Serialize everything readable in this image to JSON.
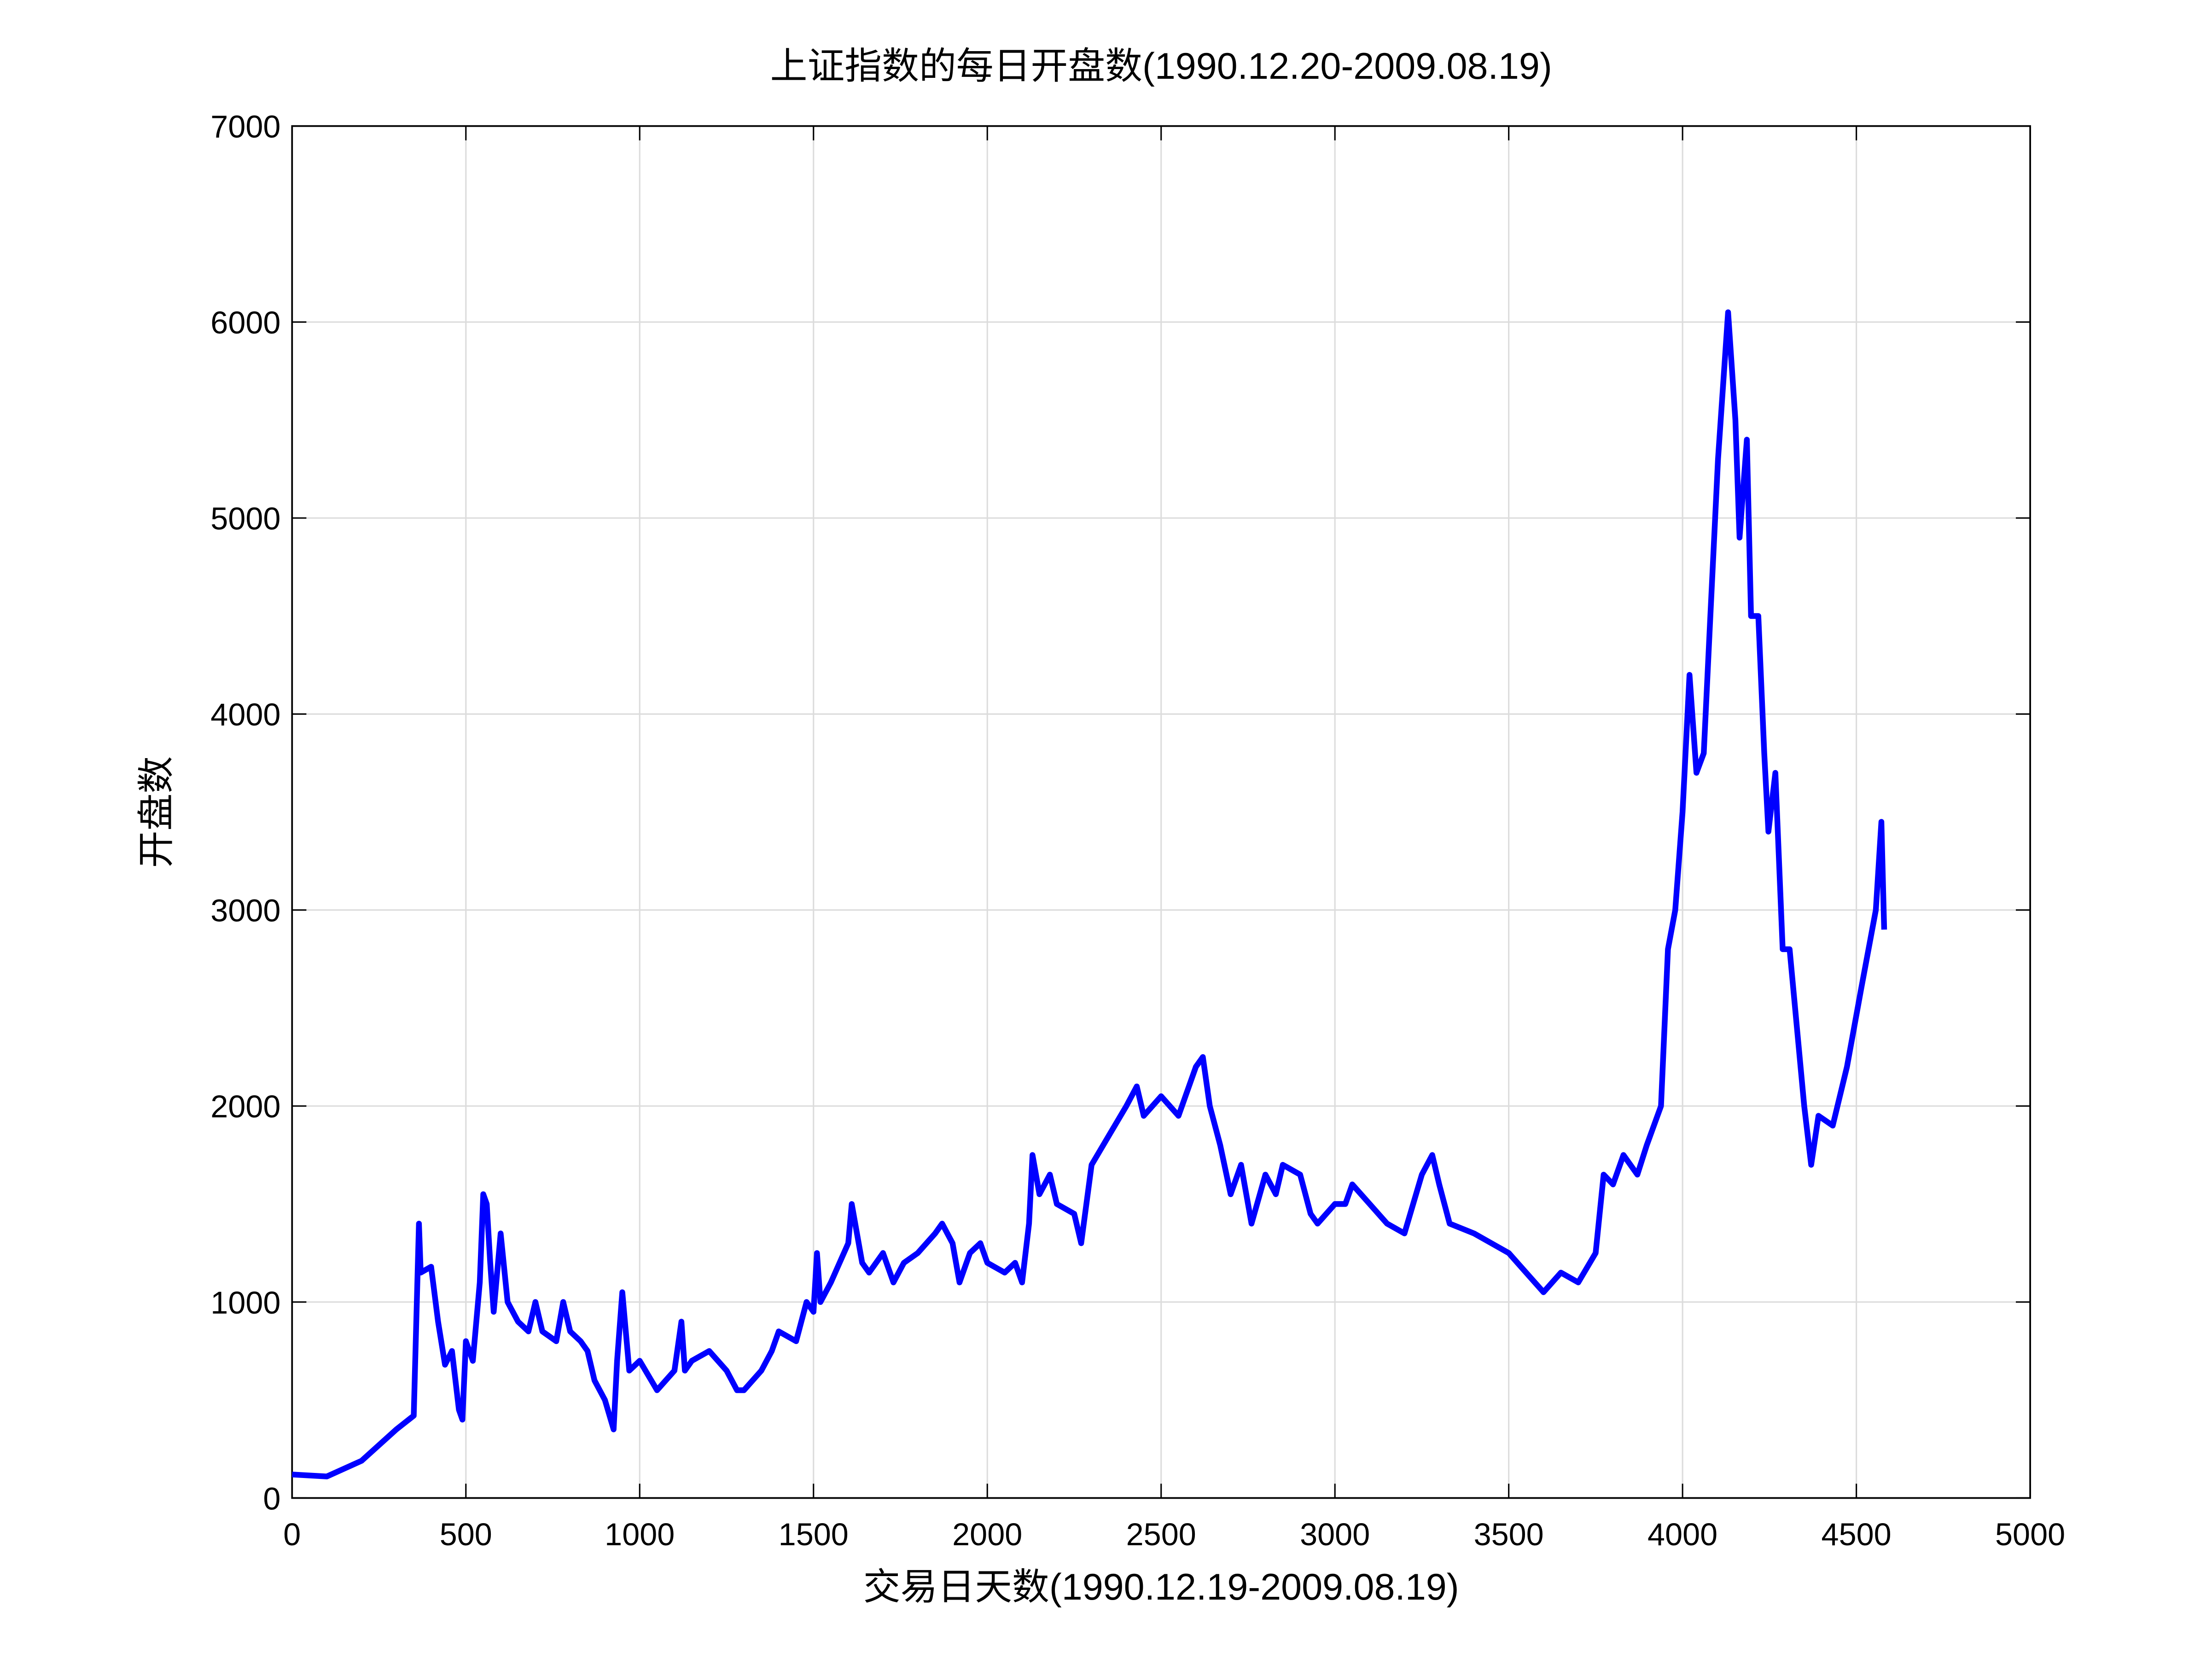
{
  "chart_data": {
    "type": "line",
    "title": "上证指数的每日开盘数(1990.12.20-2009.08.19)",
    "xlabel": "交易日天数(1990.12.19-2009.08.19)",
    "ylabel": "开盘数",
    "x": [
      0,
      100,
      200,
      300,
      350,
      365,
      370,
      400,
      420,
      440,
      460,
      480,
      490,
      500,
      520,
      540,
      550,
      560,
      570,
      580,
      600,
      620,
      650,
      680,
      700,
      720,
      760,
      780,
      800,
      830,
      850,
      870,
      900,
      925,
      935,
      950,
      960,
      970,
      1000,
      1050,
      1100,
      1120,
      1130,
      1150,
      1200,
      1250,
      1280,
      1300,
      1350,
      1380,
      1400,
      1450,
      1480,
      1500,
      1510,
      1520,
      1550,
      1600,
      1610,
      1640,
      1660,
      1700,
      1730,
      1760,
      1800,
      1850,
      1870,
      1900,
      1920,
      1950,
      1980,
      2000,
      2050,
      2080,
      2100,
      2120,
      2130,
      2150,
      2180,
      2200,
      2250,
      2270,
      2300,
      2350,
      2400,
      2430,
      2450,
      2500,
      2550,
      2600,
      2620,
      2640,
      2670,
      2700,
      2730,
      2760,
      2800,
      2830,
      2850,
      2900,
      2930,
      2950,
      3000,
      3030,
      3050,
      3100,
      3150,
      3200,
      3250,
      3280,
      3300,
      3330,
      3400,
      3450,
      3500,
      3550,
      3600,
      3650,
      3700,
      3750,
      3773,
      3800,
      3830,
      3870,
      3897,
      3938,
      3958,
      3979,
      4000,
      4020,
      4040,
      4061,
      4080,
      4102,
      4131,
      4152,
      4164,
      4185,
      4197,
      4218,
      4235,
      4247,
      4267,
      4288,
      4308,
      4329,
      4350,
      4370,
      4391,
      4432,
      4473,
      4514,
      4556,
      4572,
      4580
    ],
    "series": [
      {
        "color": "#0000ff",
        "values": [
          120,
          110,
          190,
          350,
          420,
          1400,
          1150,
          1180,
          900,
          680,
          750,
          450,
          400,
          800,
          700,
          1100,
          1550,
          1500,
          1200,
          950,
          1350,
          1000,
          900,
          850,
          1000,
          850,
          800,
          1000,
          850,
          800,
          750,
          600,
          500,
          350,
          700,
          1050,
          850,
          650,
          700,
          550,
          650,
          900,
          650,
          700,
          750,
          650,
          550,
          550,
          650,
          750,
          850,
          800,
          1000,
          950,
          1250,
          1000,
          1100,
          1300,
          1500,
          1200,
          1150,
          1250,
          1100,
          1200,
          1250,
          1350,
          1400,
          1300,
          1100,
          1250,
          1300,
          1200,
          1150,
          1200,
          1100,
          1400,
          1750,
          1550,
          1650,
          1500,
          1450,
          1300,
          1700,
          1850,
          2000,
          2100,
          1950,
          2050,
          1950,
          2200,
          2250,
          2000,
          1800,
          1550,
          1700,
          1400,
          1650,
          1550,
          1700,
          1650,
          1450,
          1400,
          1500,
          1500,
          1600,
          1500,
          1400,
          1350,
          1650,
          1750,
          1600,
          1400,
          1350,
          1300,
          1250,
          1150,
          1050,
          1150,
          1100,
          1250,
          1650,
          1600,
          1750,
          1650,
          1800,
          2000,
          2800,
          3000,
          3500,
          4200,
          3700,
          3800,
          4500,
          5300,
          6050,
          5500,
          4900,
          5400,
          4500,
          4500,
          3800,
          3400,
          3700,
          2800,
          2800,
          2400,
          2000,
          1700,
          1950,
          1900,
          2200,
          2600,
          3000,
          3450,
          2900
        ]
      }
    ],
    "xlim": [
      0,
      5000
    ],
    "xticks": [
      0,
      500,
      1000,
      1500,
      2000,
      2500,
      3000,
      3500,
      4000,
      4500,
      5000
    ],
    "ylim": [
      0,
      7000
    ],
    "yticks": [
      0,
      1000,
      2000,
      3000,
      4000,
      5000,
      6000,
      7000
    ],
    "grid": true
  }
}
